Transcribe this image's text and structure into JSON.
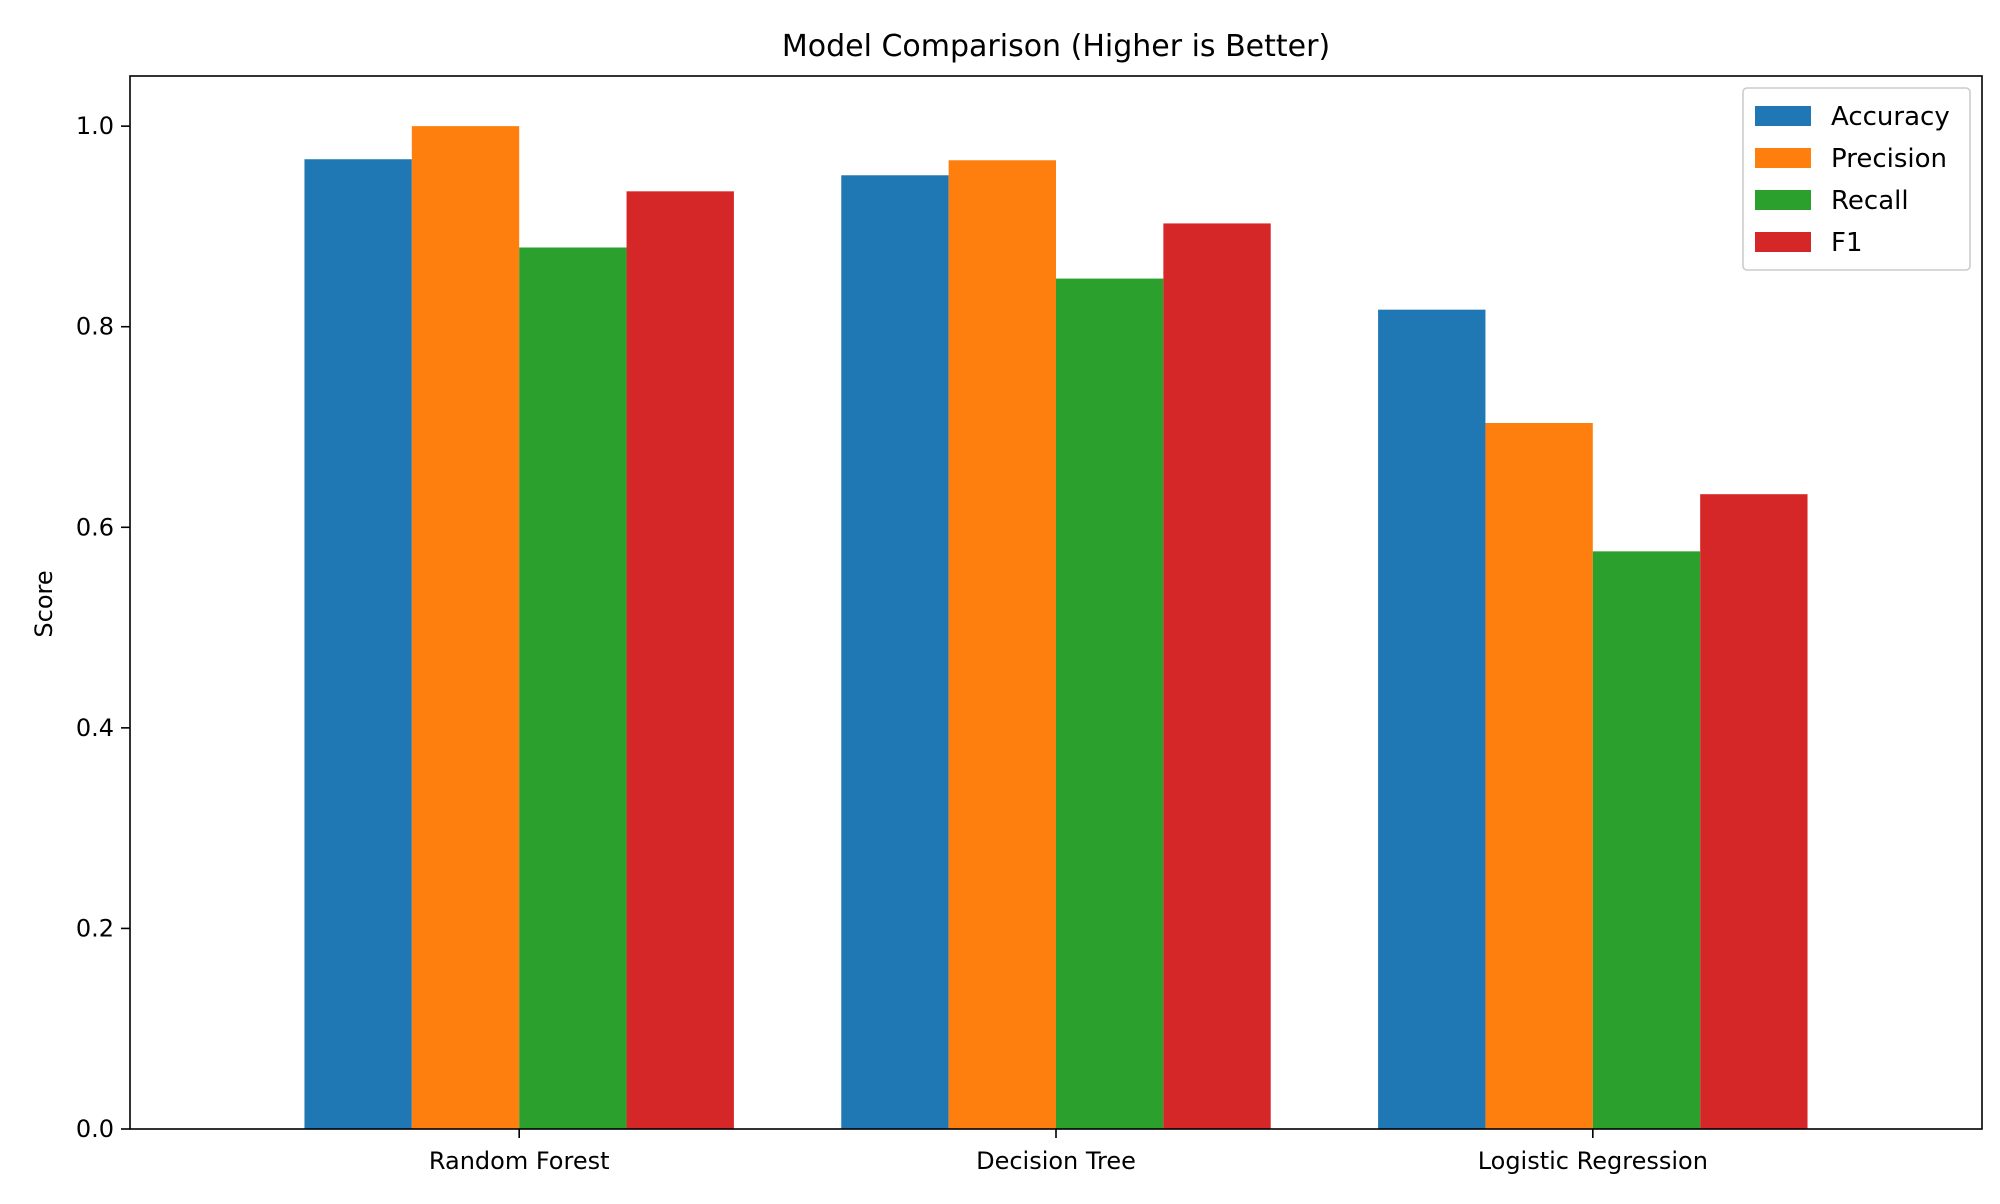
{
  "chart_data": {
    "type": "bar",
    "title": "Model Comparison (Higher is Better)",
    "xlabel": "",
    "ylabel": "Score",
    "categories": [
      "Random Forest",
      "Decision Tree",
      "Logistic Regression"
    ],
    "series": [
      {
        "name": "Accuracy",
        "color": "#1f77b4",
        "values": [
          0.967,
          0.951,
          0.817
        ]
      },
      {
        "name": "Precision",
        "color": "#ff7f0e",
        "values": [
          1.0,
          0.966,
          0.704
        ]
      },
      {
        "name": "Recall",
        "color": "#2ca02c",
        "values": [
          0.879,
          0.848,
          0.576
        ]
      },
      {
        "name": "F1",
        "color": "#d62728",
        "values": [
          0.935,
          0.903,
          0.633
        ]
      }
    ],
    "ylim": [
      0,
      1.05
    ],
    "yticks": [
      "0.0",
      "0.2",
      "0.4",
      "0.6",
      "0.8",
      "1.0"
    ],
    "grid": false,
    "legend_position": "top-right"
  }
}
